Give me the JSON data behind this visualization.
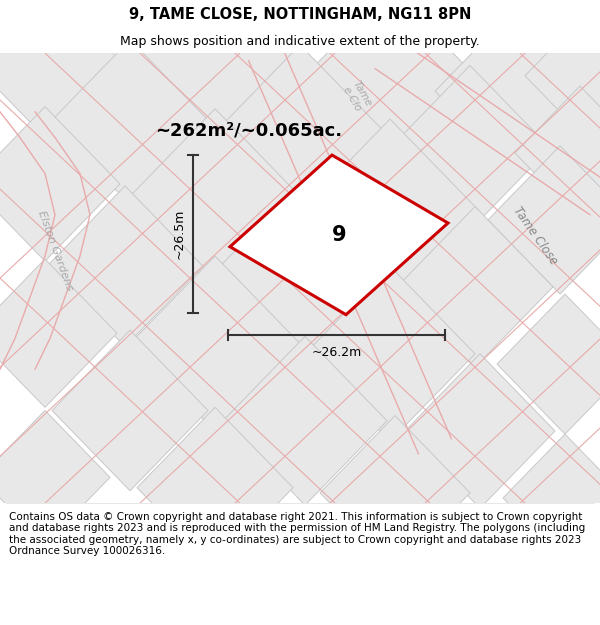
{
  "title": "9, TAME CLOSE, NOTTINGHAM, NG11 8PN",
  "subtitle": "Map shows position and indicative extent of the property.",
  "area_label": "~262m²/~0.065ac.",
  "plot_number": "9",
  "dim_width": "~26.2m",
  "dim_height": "~26.5m",
  "street_tame_close_right": "Tame Close",
  "street_tame_close_top": "Tame\ne Clo",
  "street_elston": "Elston Gardens",
  "footer": "Contains OS data © Crown copyright and database right 2021. This information is subject to Crown copyright and database rights 2023 and is reproduced with the permission of HM Land Registry. The polygons (including the associated geometry, namely x, y co-ordinates) are subject to Crown copyright and database rights 2023 Ordnance Survey 100026316.",
  "map_bg": "#f0f0f0",
  "tile_fill": "#e8e8e8",
  "tile_edge": "#d0d0d0",
  "road_fill": "#ffffff",
  "road_edge": "#d8d8d8",
  "pink": "#e8aaaa",
  "plot_fill": "#ffffff",
  "plot_stroke": "#cc0000",
  "dim_color": "#333333",
  "street_color": "#888888",
  "title_fontsize": 10.5,
  "subtitle_fontsize": 9,
  "area_fontsize": 14,
  "footer_fontsize": 7.5
}
